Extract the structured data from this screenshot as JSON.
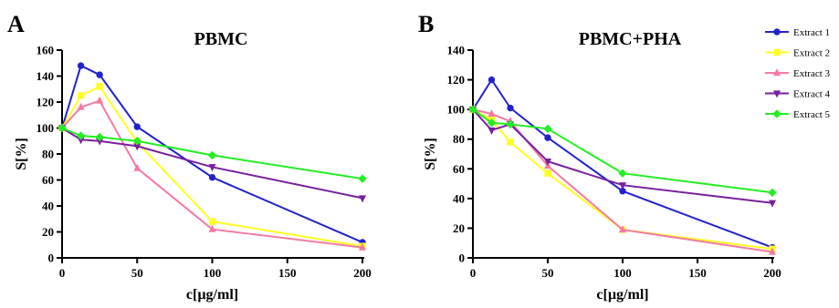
{
  "chart_data": [
    {
      "panel": "A",
      "type": "line",
      "title": "PBMC",
      "xlabel": "c[µg/ml]",
      "ylabel": "S[%]",
      "xlim": [
        0,
        200
      ],
      "ylim": [
        0,
        160
      ],
      "xticks": [
        0,
        50,
        100,
        150,
        200
      ],
      "yticks": [
        0,
        20,
        40,
        60,
        80,
        100,
        120,
        140,
        160
      ],
      "x": [
        0,
        12.5,
        25,
        50,
        100,
        200
      ],
      "series": [
        {
          "name": "Extract 1",
          "values": [
            100,
            148,
            141,
            101,
            62,
            12
          ],
          "color": "#2222cc",
          "marker": "circle"
        },
        {
          "name": "Extract 2",
          "values": [
            100,
            125,
            132,
            89,
            28,
            9
          ],
          "color": "#ffff22",
          "marker": "square"
        },
        {
          "name": "Extract 3",
          "values": [
            100,
            116,
            121,
            69,
            22,
            8
          ],
          "color": "#f47aa0",
          "marker": "triangle-up"
        },
        {
          "name": "Extract 4",
          "values": [
            100,
            91,
            90,
            86,
            70,
            46
          ],
          "color": "#7a1f9e",
          "marker": "triangle-down"
        },
        {
          "name": "Extract 5",
          "values": [
            100,
            94,
            93,
            90,
            79,
            61
          ],
          "color": "#22ee22",
          "marker": "diamond"
        }
      ]
    },
    {
      "panel": "B",
      "type": "line",
      "title": "PBMC+PHA",
      "xlabel": "c[µg/ml]",
      "ylabel": "S[%]",
      "xlim": [
        0,
        200
      ],
      "ylim": [
        0,
        140
      ],
      "xticks": [
        0,
        50,
        100,
        150,
        200
      ],
      "yticks": [
        0,
        20,
        40,
        60,
        80,
        100,
        120,
        140
      ],
      "x": [
        0,
        12.5,
        25,
        50,
        100,
        200
      ],
      "legend_position": "top-right",
      "series": [
        {
          "name": "Extract 1",
          "values": [
            100,
            120,
            101,
            81,
            45,
            7
          ],
          "color": "#2222cc",
          "marker": "circle"
        },
        {
          "name": "Extract 2",
          "values": [
            100,
            93,
            78,
            57,
            19,
            6
          ],
          "color": "#ffff22",
          "marker": "square"
        },
        {
          "name": "Extract 3",
          "values": [
            100,
            97,
            92,
            62,
            19,
            4
          ],
          "color": "#f47aa0",
          "marker": "triangle-up"
        },
        {
          "name": "Extract 4",
          "values": [
            100,
            86,
            90,
            65,
            49,
            37
          ],
          "color": "#7a1f9e",
          "marker": "triangle-down"
        },
        {
          "name": "Extract 5",
          "values": [
            100,
            91,
            90,
            87,
            57,
            44
          ],
          "color": "#22ee22",
          "marker": "diamond"
        }
      ]
    }
  ]
}
